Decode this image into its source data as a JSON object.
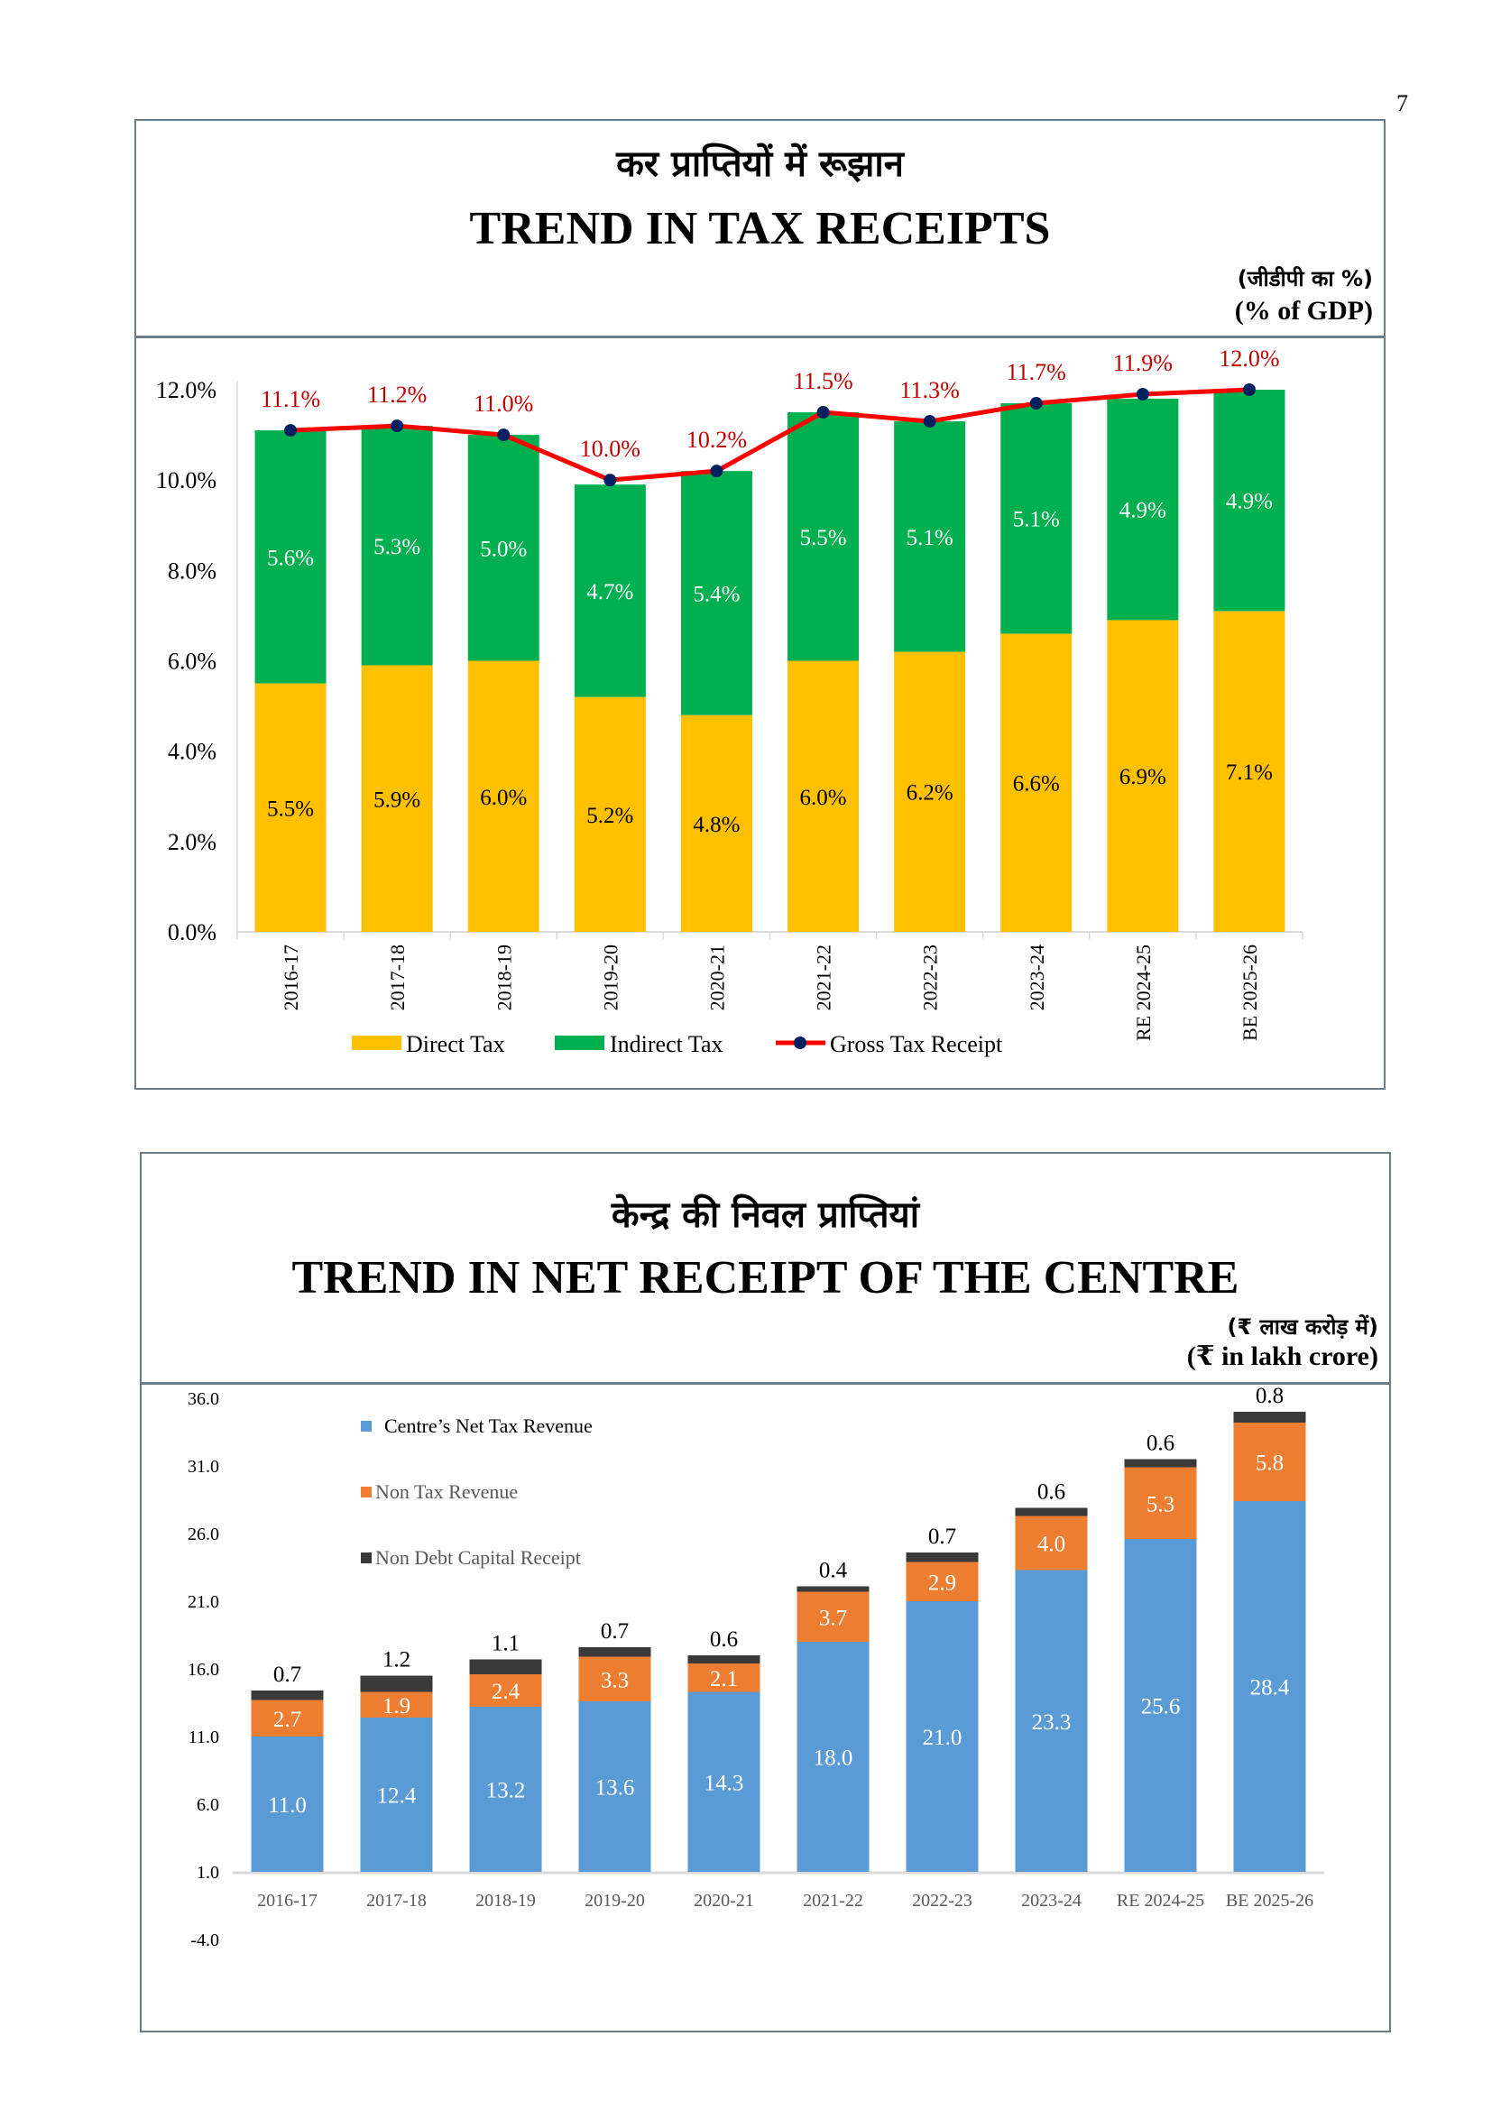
{
  "page_number": "7",
  "panels": [
    {
      "title_hindi": "कर प्राप्तियों में रूझान",
      "title_english": "TREND IN TAX RECEIPTS",
      "unit_hindi": "(जीडीपी का %)",
      "unit_english": "(% of GDP)"
    },
    {
      "title_hindi": "केन्द्र की निवल प्राप्तियां",
      "title_english": "TREND IN NET RECEIPT OF THE CENTRE",
      "unit_hindi": "(₹ लाख करोड़ में)",
      "unit_english": "(₹ in lakh crore)"
    }
  ],
  "colors": {
    "direct_tax": "#ffc000",
    "indirect_tax": "#00b050",
    "gross_line": "#ff0000",
    "gross_marker": "#002060",
    "gross_label": "#c00000",
    "net_tax": "#5b9bd5",
    "non_tax": "#ed7d31",
    "non_debt": "#3a3a3a"
  },
  "chart_data": [
    {
      "type": "bar",
      "stacked": true,
      "title": "TREND IN TAX RECEIPTS",
      "ylabel": "% of GDP",
      "ylim": [
        0,
        12
      ],
      "yticks": [
        "0.0%",
        "2.0%",
        "4.0%",
        "6.0%",
        "8.0%",
        "10.0%",
        "12.0%"
      ],
      "ytick_values": [
        0,
        2,
        4,
        6,
        8,
        10,
        12
      ],
      "categories": [
        "2016-17",
        "2017-18",
        "2018-19",
        "2019-20",
        "2020-21",
        "2021-22",
        "2022-23",
        "2023-24",
        "RE 2024-25",
        "BE 2025-26"
      ],
      "series": [
        {
          "name": "Direct Tax",
          "kind": "bar",
          "values": [
            5.5,
            5.9,
            6.0,
            5.2,
            4.8,
            6.0,
            6.2,
            6.6,
            6.9,
            7.1
          ],
          "labels": [
            "5.5%",
            "5.9%",
            "6.0%",
            "5.2%",
            "4.8%",
            "6.0%",
            "6.2%",
            "6.6%",
            "6.9%",
            "7.1%"
          ]
        },
        {
          "name": "Indirect Tax",
          "kind": "bar",
          "values": [
            5.6,
            5.3,
            5.0,
            4.7,
            5.4,
            5.5,
            5.1,
            5.1,
            4.9,
            4.9
          ],
          "labels": [
            "5.6%",
            "5.3%",
            "5.0%",
            "4.7%",
            "5.4%",
            "5.5%",
            "5.1%",
            "5.1%",
            "4.9%",
            "4.9%"
          ]
        },
        {
          "name": "Gross Tax Receipt",
          "kind": "line",
          "values": [
            11.1,
            11.2,
            11.0,
            10.0,
            10.2,
            11.5,
            11.3,
            11.7,
            11.9,
            12.0
          ],
          "labels": [
            "11.1%",
            "11.2%",
            "11.0%",
            "10.0%",
            "10.2%",
            "11.5%",
            "11.3%",
            "11.7%",
            "11.9%",
            "12.0%"
          ]
        }
      ],
      "legend": [
        "Direct Tax",
        "Indirect Tax",
        "Gross Tax Receipt"
      ],
      "legend_position": "bottom",
      "grid": false
    },
    {
      "type": "bar",
      "stacked": true,
      "title": "TREND IN NET RECEIPT OF THE CENTRE",
      "ylabel": "₹ in lakh crore",
      "ylim": [
        -4,
        36
      ],
      "axis_baseline": 1.0,
      "yticks": [
        "-4.0",
        "1.0",
        "6.0",
        "11.0",
        "16.0",
        "21.0",
        "26.0",
        "31.0",
        "36.0"
      ],
      "ytick_values": [
        -4,
        1,
        6,
        11,
        16,
        21,
        26,
        31,
        36
      ],
      "categories": [
        "2016-17",
        "2017-18",
        "2018-19",
        "2019-20",
        "2020-21",
        "2021-22",
        "2022-23",
        "2023-24",
        "RE 2024-25",
        "BE 2025-26"
      ],
      "series": [
        {
          "name": "Centre’s Net Tax Revenue",
          "values": [
            11.0,
            12.4,
            13.2,
            13.6,
            14.3,
            18.0,
            21.0,
            23.3,
            25.6,
            28.4
          ],
          "labels": [
            "11.0",
            "12.4",
            "13.2",
            "13.6",
            "14.3",
            "18.0",
            "21.0",
            "23.3",
            "25.6",
            "28.4"
          ]
        },
        {
          "name": "Non Tax Revenue",
          "values": [
            2.7,
            1.9,
            2.4,
            3.3,
            2.1,
            3.7,
            2.9,
            4.0,
            5.3,
            5.8
          ],
          "labels": [
            "2.7",
            "1.9",
            "2.4",
            "3.3",
            "2.1",
            "3.7",
            "2.9",
            "4.0",
            "5.3",
            "5.8"
          ]
        },
        {
          "name": "Non Debt Capital Receipt",
          "values": [
            0.7,
            1.2,
            1.1,
            0.7,
            0.6,
            0.4,
            0.7,
            0.6,
            0.6,
            0.8
          ],
          "labels": [
            "0.7",
            "1.2",
            "1.1",
            "0.7",
            "0.6",
            "0.4",
            "0.7",
            "0.6",
            "0.6",
            "0.8"
          ]
        }
      ],
      "legend": [
        "Centre’s Net Tax Revenue",
        "Non Tax Revenue",
        "Non Debt Capital Receipt"
      ],
      "legend_position": "top-left",
      "grid": false
    }
  ]
}
